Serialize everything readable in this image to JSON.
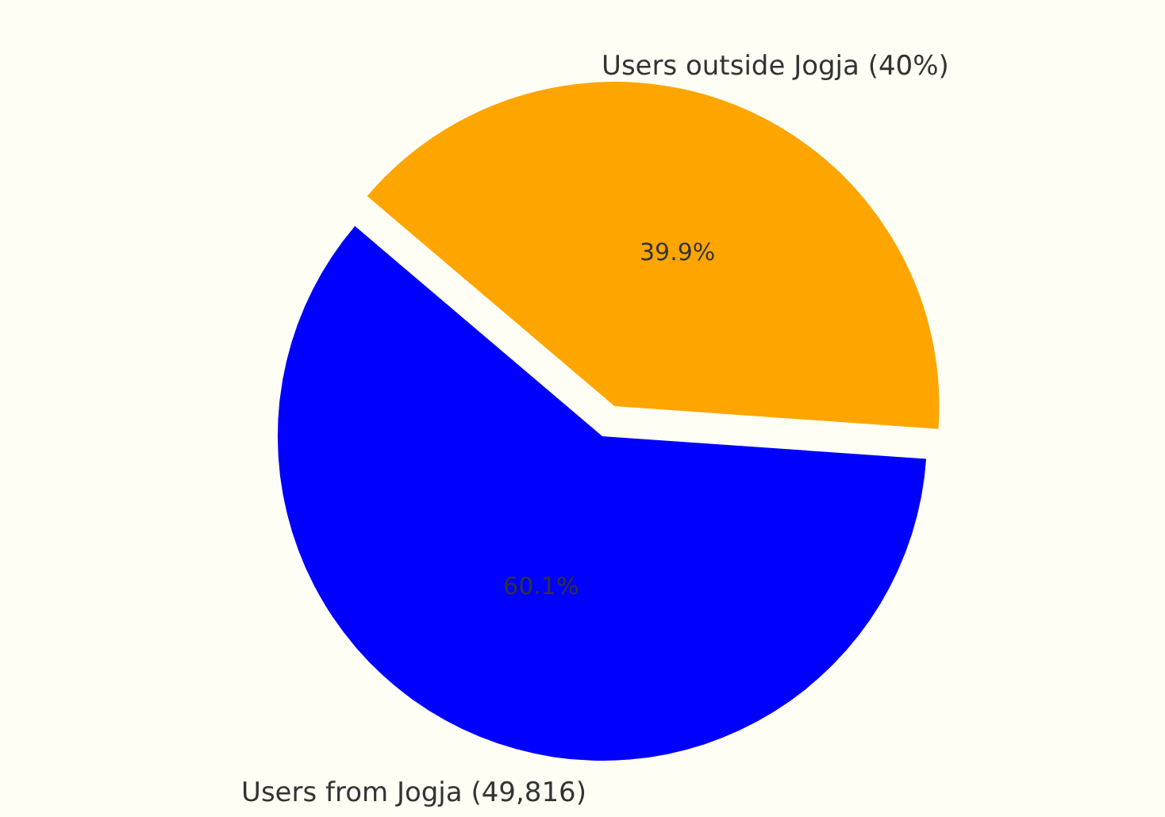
{
  "chart_data": {
    "type": "pie",
    "categories": [
      "Users from Jogja (49,816)",
      "Users outside Jogja (40%)"
    ],
    "values": [
      60.1,
      39.9
    ],
    "colors": [
      "#0000ff",
      "#ffa500"
    ],
    "value_labels": [
      "60.1%",
      "39.9%"
    ],
    "legend": false
  }
}
